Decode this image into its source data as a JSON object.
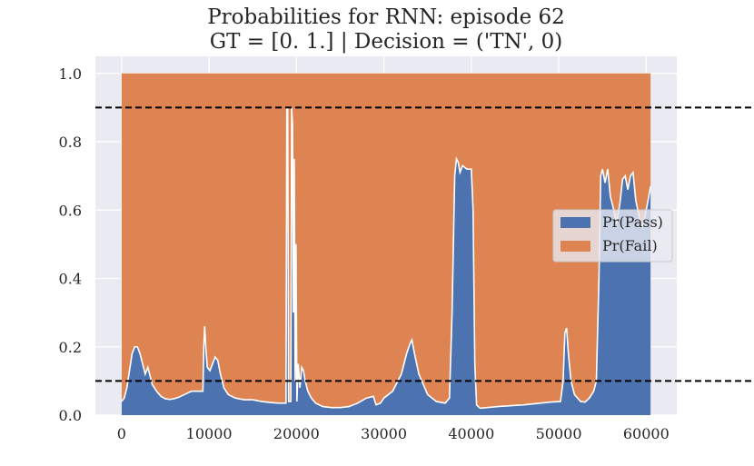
{
  "chart_data": {
    "type": "area",
    "title": "Probabilities for RNN: episode 62",
    "subtitle": "GT = [0. 1.] | Decision = ('TN', 0)",
    "xlabel": "",
    "ylabel": "",
    "xlim": [
      -3000,
      63500
    ],
    "ylim": [
      0.0,
      1.05
    ],
    "x_ticks": [
      0,
      10000,
      20000,
      30000,
      40000,
      50000,
      60000
    ],
    "y_ticks": [
      "0.0",
      "0.2",
      "0.4",
      "0.6",
      "0.8",
      "1.0"
    ],
    "grid": true,
    "stacked": true,
    "legend_position": "center-right",
    "thresholds": [
      0.9,
      0.1
    ],
    "x_range": [
      0,
      60500
    ],
    "series": [
      {
        "name": "Pr(Pass)",
        "color": "#4c72b0",
        "points": [
          [
            0,
            0.04
          ],
          [
            300,
            0.05
          ],
          [
            600,
            0.08
          ],
          [
            900,
            0.13
          ],
          [
            1200,
            0.18
          ],
          [
            1500,
            0.2
          ],
          [
            1800,
            0.2
          ],
          [
            2100,
            0.18
          ],
          [
            2400,
            0.15
          ],
          [
            2700,
            0.12
          ],
          [
            3000,
            0.14
          ],
          [
            3200,
            0.12
          ],
          [
            3500,
            0.09
          ],
          [
            4000,
            0.07
          ],
          [
            4500,
            0.055
          ],
          [
            5000,
            0.048
          ],
          [
            5500,
            0.046
          ],
          [
            6000,
            0.048
          ],
          [
            6500,
            0.052
          ],
          [
            7000,
            0.058
          ],
          [
            7500,
            0.064
          ],
          [
            8000,
            0.07
          ],
          [
            8500,
            0.07
          ],
          [
            9000,
            0.07
          ],
          [
            9300,
            0.07
          ],
          [
            9400,
            0.2
          ],
          [
            9500,
            0.26
          ],
          [
            9650,
            0.19
          ],
          [
            9800,
            0.14
          ],
          [
            10100,
            0.13
          ],
          [
            10400,
            0.15
          ],
          [
            10700,
            0.17
          ],
          [
            11000,
            0.16
          ],
          [
            11300,
            0.12
          ],
          [
            11700,
            0.08
          ],
          [
            12200,
            0.06
          ],
          [
            13000,
            0.05
          ],
          [
            14000,
            0.045
          ],
          [
            15000,
            0.045
          ],
          [
            16000,
            0.04
          ],
          [
            17000,
            0.037
          ],
          [
            18000,
            0.035
          ],
          [
            18800,
            0.035
          ],
          [
            18900,
            0.9
          ],
          [
            19000,
            0.9
          ],
          [
            19100,
            0.04
          ],
          [
            19350,
            0.04
          ],
          [
            19450,
            0.9
          ],
          [
            19550,
            0.85
          ],
          [
            19650,
            0.3
          ],
          [
            19750,
            0.75
          ],
          [
            19850,
            0.1
          ],
          [
            19950,
            0.5
          ],
          [
            20050,
            0.04
          ],
          [
            20200,
            0.15
          ],
          [
            20400,
            0.08
          ],
          [
            20600,
            0.14
          ],
          [
            20800,
            0.13
          ],
          [
            21000,
            0.1
          ],
          [
            21300,
            0.07
          ],
          [
            21700,
            0.05
          ],
          [
            22200,
            0.035
          ],
          [
            23000,
            0.025
          ],
          [
            24000,
            0.022
          ],
          [
            25000,
            0.022
          ],
          [
            26000,
            0.025
          ],
          [
            27000,
            0.035
          ],
          [
            28000,
            0.05
          ],
          [
            28800,
            0.055
          ],
          [
            29100,
            0.03
          ],
          [
            29600,
            0.035
          ],
          [
            30000,
            0.05
          ],
          [
            31000,
            0.07
          ],
          [
            32000,
            0.12
          ],
          [
            32600,
            0.18
          ],
          [
            33000,
            0.21
          ],
          [
            33200,
            0.22
          ],
          [
            33500,
            0.18
          ],
          [
            34000,
            0.12
          ],
          [
            35000,
            0.06
          ],
          [
            36000,
            0.04
          ],
          [
            37000,
            0.035
          ],
          [
            37500,
            0.05
          ],
          [
            37800,
            0.3
          ],
          [
            38100,
            0.7
          ],
          [
            38300,
            0.75
          ],
          [
            38500,
            0.74
          ],
          [
            38700,
            0.71
          ],
          [
            39000,
            0.73
          ],
          [
            39500,
            0.72
          ],
          [
            40000,
            0.72
          ],
          [
            40200,
            0.6
          ],
          [
            40400,
            0.15
          ],
          [
            40600,
            0.03
          ],
          [
            41000,
            0.02
          ],
          [
            43000,
            0.025
          ],
          [
            46000,
            0.03
          ],
          [
            49000,
            0.038
          ],
          [
            50200,
            0.04
          ],
          [
            50500,
            0.1
          ],
          [
            50700,
            0.24
          ],
          [
            50900,
            0.255
          ],
          [
            51100,
            0.18
          ],
          [
            51400,
            0.1
          ],
          [
            51800,
            0.06
          ],
          [
            52500,
            0.04
          ],
          [
            53000,
            0.038
          ],
          [
            53500,
            0.05
          ],
          [
            54000,
            0.07
          ],
          [
            54300,
            0.1
          ],
          [
            54600,
            0.4
          ],
          [
            54800,
            0.7
          ],
          [
            55000,
            0.72
          ],
          [
            55300,
            0.68
          ],
          [
            55600,
            0.72
          ],
          [
            55900,
            0.64
          ],
          [
            56300,
            0.6
          ],
          [
            56600,
            0.56
          ],
          [
            57000,
            0.62
          ],
          [
            57300,
            0.69
          ],
          [
            57600,
            0.7
          ],
          [
            57900,
            0.66
          ],
          [
            58200,
            0.7
          ],
          [
            58500,
            0.71
          ],
          [
            58800,
            0.63
          ],
          [
            59200,
            0.58
          ],
          [
            59600,
            0.55
          ],
          [
            60000,
            0.6
          ],
          [
            60300,
            0.64
          ],
          [
            60500,
            0.67
          ]
        ]
      },
      {
        "name": "Pr(Fail)",
        "color": "#dd8452",
        "stack_top": 1.0
      }
    ]
  }
}
